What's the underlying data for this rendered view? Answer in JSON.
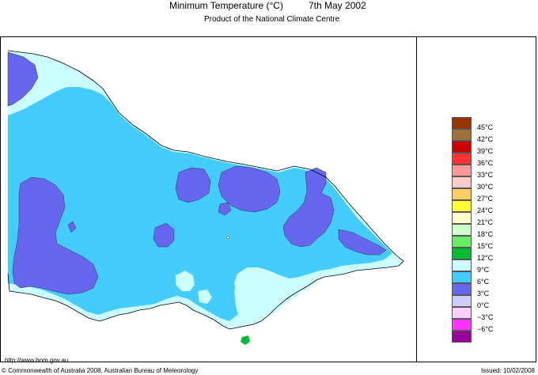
{
  "header": {
    "title": "Minimum Temperature (°C)",
    "date": "7th May 2002",
    "subtitle": "Product of the National Climate Centre"
  },
  "footer": {
    "url": "http://www.bom.gov.au",
    "copyright": "© Commonwealth of Australia 2008, Australian Bureau of Meteorology",
    "issued": "Issued: 10/02/2008"
  },
  "legend": {
    "items": [
      {
        "label": "45°C",
        "color": "#993300"
      },
      {
        "label": "42°C",
        "color": "#a0703a"
      },
      {
        "label": "39°C",
        "color": "#cc0000"
      },
      {
        "label": "36°C",
        "color": "#ff3333"
      },
      {
        "label": "33°C",
        "color": "#ff9999"
      },
      {
        "label": "30°C",
        "color": "#ffcccc"
      },
      {
        "label": "27°C",
        "color": "#ffcc66"
      },
      {
        "label": "24°C",
        "color": "#ffff33"
      },
      {
        "label": "21°C",
        "color": "#ffffcc"
      },
      {
        "label": "18°C",
        "color": "#ccffcc"
      },
      {
        "label": "15°C",
        "color": "#66ee66"
      },
      {
        "label": "12°C",
        "color": "#00bb33"
      },
      {
        "label": "9°C",
        "color": "#ccffff"
      },
      {
        "label": "6°C",
        "color": "#44ccff"
      },
      {
        "label": "3°C",
        "color": "#6666ee"
      },
      {
        "label": "0°C",
        "color": "#ccccff"
      },
      {
        "label": "−3°C",
        "color": "#ffccff"
      },
      {
        "label": "−6°C",
        "color": "#ff33ff"
      },
      {
        "label": "",
        "color": "#990099"
      }
    ]
  },
  "map_colors": {
    "band_9_12": "#ccffff",
    "band_6_9": "#44ccff",
    "band_3_6": "#6666ee",
    "band_12_15": "#00bb33"
  }
}
